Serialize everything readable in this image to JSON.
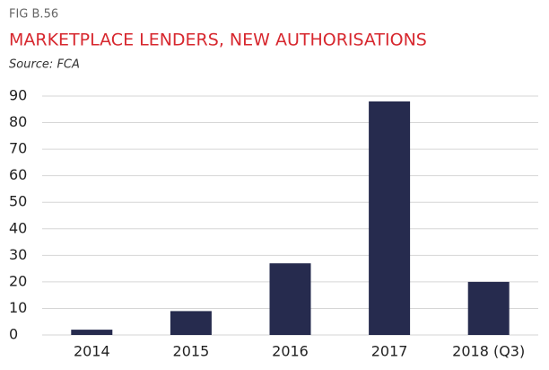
{
  "chart_data": {
    "type": "bar",
    "figure_label": "FIG B.56",
    "title": "MARKETPLACE LENDERS, NEW AUTHORISATIONS",
    "source": "Source: FCA",
    "categories": [
      "2014",
      "2015",
      "2016",
      "2017",
      "2018 (Q3)"
    ],
    "values": [
      2,
      9,
      27,
      88,
      20
    ],
    "color": "#262b4e",
    "ylim": [
      0,
      90
    ],
    "yticks": [
      0,
      10,
      20,
      30,
      40,
      50,
      60,
      70,
      80,
      90
    ],
    "grid": true
  }
}
